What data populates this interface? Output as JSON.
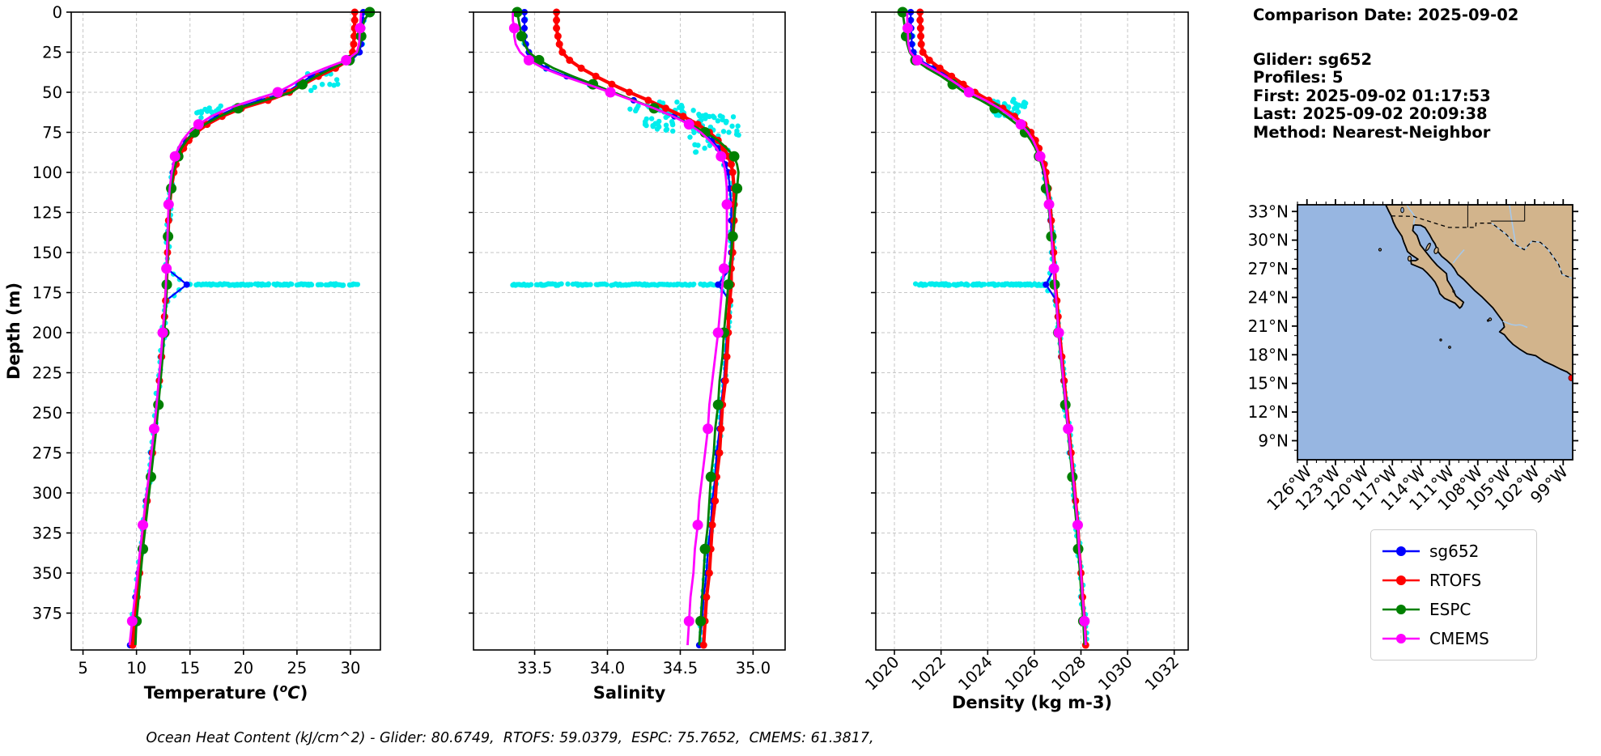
{
  "info_panel": {
    "date": "Comparison Date: 2025-09-02",
    "glider": "Glider: sg652",
    "profiles": "Profiles: 5",
    "first": "First: 2025-09-02 01:17:53",
    "last": "Last: 2025-09-02 20:09:38",
    "method": "Method: Nearest-Neighbor"
  },
  "footer": {
    "ohc_line": "Ocean Heat Content (kJ/cm^2) - Glider: 80.6749,  RTOFS: 59.0379,  ESPC: 75.7652,  CMEMS: 61.3817,"
  },
  "legend": {
    "entries": [
      {
        "label": "sg652",
        "color": "#0000ff"
      },
      {
        "label": "RTOFS",
        "color": "#ff0000"
      },
      {
        "label": "ESPC",
        "color": "#008000"
      },
      {
        "label": "CMEMS",
        "color": "#ff00ff"
      }
    ]
  },
  "map": {
    "lat_labels": [
      "33°N",
      "30°N",
      "27°N",
      "24°N",
      "21°N",
      "18°N",
      "15°N",
      "12°N",
      "9°N"
    ],
    "lat_values": [
      33,
      30,
      27,
      24,
      21,
      18,
      15,
      12,
      9
    ],
    "lon_labels": [
      "126°W",
      "123°W",
      "120°W",
      "117°W",
      "114°W",
      "111°W",
      "108°W",
      "105°W",
      "102°W",
      "99°W"
    ],
    "lon_values": [
      126,
      123,
      120,
      117,
      114,
      111,
      108,
      105,
      102,
      99
    ],
    "ocean_color": "#97b6e1",
    "land_color": "#d2b48c",
    "coast_color": "#000000",
    "river_color": "#a6c8ea",
    "glider_marker_color": "#ff0000"
  },
  "chart_data": [
    {
      "type": "line",
      "id": "temperature",
      "xlabel": "Temperature (^oC)",
      "ylabel": "Depth (m)",
      "xlim": [
        3.9,
        32.8
      ],
      "xticks": [
        5,
        10,
        15,
        20,
        25,
        30
      ],
      "xtick_labels": [
        "5",
        "10",
        "15",
        "20",
        "25",
        "30"
      ],
      "xtick_rotation": 0,
      "ylim": [
        0,
        398
      ],
      "yticks": [
        0,
        25,
        50,
        75,
        100,
        125,
        150,
        175,
        200,
        225,
        250,
        275,
        300,
        325,
        350,
        375
      ],
      "show_yticklabels": true,
      "grid": true,
      "depths": [
        0,
        5,
        10,
        15,
        20,
        25,
        30,
        35,
        40,
        45,
        50,
        55,
        60,
        65,
        70,
        75,
        80,
        85,
        90,
        95,
        100,
        110,
        120,
        130,
        140,
        150,
        160,
        170,
        180,
        190,
        200,
        215,
        230,
        245,
        260,
        275,
        290,
        305,
        320,
        335,
        350,
        365,
        380,
        395
      ],
      "series": [
        {
          "name": "sg652",
          "color": "#0000ff",
          "values": [
            31.2,
            31.15,
            31.1,
            31.05,
            31.0,
            30.85,
            30.1,
            28.2,
            26.3,
            25.2,
            24.0,
            21.5,
            19.2,
            17.5,
            16.2,
            15.3,
            14.6,
            14.1,
            13.8,
            13.6,
            13.4,
            13.2,
            13.1,
            13.0,
            12.95,
            12.9,
            12.85,
            14.7,
            12.75,
            12.65,
            12.5,
            12.3,
            12.1,
            11.9,
            11.7,
            11.4,
            11.2,
            10.9,
            10.7,
            10.4,
            10.2,
            9.9,
            9.7,
            9.4
          ]
        },
        {
          "name": "RTOFS",
          "color": "#ff0000",
          "values": [
            30.4,
            30.4,
            30.38,
            30.35,
            30.3,
            30.2,
            29.8,
            28.6,
            27.0,
            25.6,
            24.3,
            22.3,
            19.8,
            18.0,
            16.6,
            15.6,
            14.9,
            14.4,
            14.0,
            13.7,
            13.5,
            13.25,
            13.1,
            13.0,
            12.95,
            12.9,
            12.85,
            12.8,
            12.72,
            12.62,
            12.5,
            12.35,
            12.15,
            11.95,
            11.75,
            11.5,
            11.25,
            11.0,
            10.75,
            10.5,
            10.3,
            10.05,
            9.85,
            9.65
          ]
        },
        {
          "name": "ESPC",
          "color": "#008000",
          "values": [
            31.8,
            31.3,
            31.1,
            31.0,
            30.9,
            30.7,
            29.9,
            28.3,
            26.8,
            25.5,
            24.5,
            22.0,
            19.5,
            17.8,
            16.4,
            15.4,
            14.7,
            14.2,
            13.9,
            13.65,
            13.45,
            13.25,
            13.1,
            13.0,
            12.95,
            12.9,
            12.87,
            12.83,
            12.78,
            12.7,
            12.6,
            12.45,
            12.25,
            12.05,
            11.85,
            11.6,
            11.35,
            11.1,
            10.85,
            10.6,
            10.4,
            10.2,
            10.0,
            9.9
          ]
        },
        {
          "name": "CMEMS",
          "color": "#ff00ff",
          "values": [
            31.0,
            30.95,
            30.9,
            30.85,
            30.8,
            30.6,
            29.6,
            27.6,
            25.8,
            24.6,
            23.2,
            20.8,
            18.6,
            17.0,
            15.8,
            14.9,
            14.3,
            13.9,
            13.6,
            13.45,
            13.3,
            13.1,
            13.0,
            12.95,
            12.9,
            12.85,
            12.8,
            12.75,
            12.68,
            12.58,
            12.45,
            12.28,
            12.08,
            11.88,
            11.65,
            11.4,
            11.15,
            10.85,
            10.6,
            10.35,
            10.1,
            9.85,
            9.6,
            9.35
          ]
        }
      ],
      "glider_scatter": {
        "color": "#00eded",
        "line_depth": 170,
        "line_range": [
          14.7,
          30.6
        ],
        "clusters": [
          {
            "x0": 15.6,
            "x1": 18.2,
            "d0": 56,
            "d1": 66,
            "n": 18
          },
          {
            "x0": 26.0,
            "x1": 29.3,
            "d0": 38,
            "d1": 50,
            "n": 14
          }
        ]
      }
    },
    {
      "type": "line",
      "id": "salinity",
      "xlabel": "Salinity",
      "ylabel": "",
      "xlim": [
        33.08,
        35.22
      ],
      "xticks": [
        33.5,
        34.0,
        34.5,
        35.0
      ],
      "xtick_labels": [
        "33.5",
        "34.0",
        "34.5",
        "35.0"
      ],
      "xtick_rotation": 0,
      "ylim": [
        0,
        398
      ],
      "yticks": [
        0,
        25,
        50,
        75,
        100,
        125,
        150,
        175,
        200,
        225,
        250,
        275,
        300,
        325,
        350,
        375
      ],
      "show_yticklabels": false,
      "grid": true,
      "depths": [
        0,
        5,
        10,
        15,
        20,
        25,
        30,
        35,
        40,
        45,
        50,
        55,
        60,
        65,
        70,
        75,
        80,
        85,
        90,
        95,
        100,
        110,
        120,
        130,
        140,
        150,
        160,
        170,
        180,
        190,
        200,
        215,
        230,
        245,
        260,
        275,
        290,
        305,
        320,
        335,
        350,
        365,
        380,
        395
      ],
      "series": [
        {
          "name": "sg652",
          "color": "#0000ff",
          "values": [
            33.43,
            33.43,
            33.43,
            33.43,
            33.44,
            33.46,
            33.5,
            33.58,
            33.72,
            33.88,
            34.02,
            34.18,
            34.32,
            34.46,
            34.58,
            34.66,
            34.72,
            34.76,
            34.79,
            34.81,
            34.83,
            34.84,
            34.85,
            34.85,
            34.85,
            34.85,
            34.84,
            34.76,
            34.84,
            34.83,
            34.82,
            34.81,
            34.8,
            34.78,
            34.77,
            34.75,
            34.74,
            34.72,
            34.71,
            34.69,
            34.68,
            34.66,
            34.65,
            34.63
          ]
        },
        {
          "name": "RTOFS",
          "color": "#ff0000",
          "values": [
            33.65,
            33.65,
            33.65,
            33.66,
            33.67,
            33.69,
            33.74,
            33.82,
            33.92,
            34.03,
            34.15,
            34.28,
            34.4,
            34.52,
            34.62,
            34.7,
            34.76,
            34.8,
            34.83,
            34.85,
            34.86,
            34.87,
            34.87,
            34.87,
            34.86,
            34.86,
            34.85,
            34.85,
            34.84,
            34.83,
            34.83,
            34.82,
            34.81,
            34.79,
            34.78,
            34.77,
            34.75,
            34.74,
            34.72,
            34.71,
            34.7,
            34.68,
            34.67,
            34.66
          ]
        },
        {
          "name": "ESPC",
          "color": "#008000",
          "values": [
            33.38,
            33.39,
            33.4,
            33.41,
            33.43,
            33.46,
            33.53,
            33.63,
            33.76,
            33.9,
            34.04,
            34.18,
            34.32,
            34.45,
            34.57,
            34.67,
            34.76,
            34.82,
            34.87,
            34.89,
            34.9,
            34.89,
            34.88,
            34.87,
            34.86,
            34.85,
            34.84,
            34.83,
            34.82,
            34.81,
            34.8,
            34.79,
            34.77,
            34.76,
            34.74,
            34.73,
            34.71,
            34.7,
            34.69,
            34.67,
            34.66,
            34.65,
            34.64,
            34.63
          ]
        },
        {
          "name": "CMEMS",
          "color": "#ff00ff",
          "values": [
            33.35,
            33.35,
            33.36,
            33.36,
            33.37,
            33.4,
            33.46,
            33.56,
            33.7,
            33.86,
            34.02,
            34.17,
            34.32,
            34.45,
            34.56,
            34.64,
            34.7,
            34.75,
            34.78,
            34.8,
            34.81,
            34.82,
            34.82,
            34.82,
            34.82,
            34.81,
            34.8,
            34.79,
            34.78,
            34.77,
            34.76,
            34.74,
            34.72,
            34.7,
            34.69,
            34.67,
            34.65,
            34.63,
            34.62,
            34.6,
            34.59,
            34.57,
            34.56,
            34.55
          ]
        }
      ],
      "glider_scatter": {
        "color": "#00eded",
        "line_depth": 170,
        "line_range": [
          33.35,
          34.78
        ],
        "clusters": [
          {
            "x0": 34.15,
            "x1": 34.6,
            "d0": 56,
            "d1": 63,
            "n": 26
          },
          {
            "x0": 34.25,
            "x1": 34.9,
            "d0": 63,
            "d1": 75,
            "n": 55
          },
          {
            "x0": 34.55,
            "x1": 34.92,
            "d0": 75,
            "d1": 90,
            "n": 24
          }
        ]
      }
    },
    {
      "type": "line",
      "id": "density",
      "xlabel": "Density (kg m-3)",
      "ylabel": "",
      "xlim": [
        1019.2,
        1032.6
      ],
      "xticks": [
        1020,
        1022,
        1024,
        1026,
        1028,
        1030,
        1032
      ],
      "xtick_labels": [
        "1020",
        "1022",
        "1024",
        "1026",
        "1028",
        "1030",
        "1032"
      ],
      "xtick_rotation": 45,
      "ylim": [
        0,
        398
      ],
      "yticks": [
        0,
        25,
        50,
        75,
        100,
        125,
        150,
        175,
        200,
        225,
        250,
        275,
        300,
        325,
        350,
        375
      ],
      "show_yticklabels": false,
      "grid": true,
      "depths": [
        0,
        5,
        10,
        15,
        20,
        25,
        30,
        35,
        40,
        45,
        50,
        55,
        60,
        65,
        70,
        75,
        80,
        85,
        90,
        95,
        100,
        110,
        120,
        130,
        140,
        150,
        160,
        170,
        180,
        190,
        200,
        215,
        230,
        245,
        260,
        275,
        290,
        305,
        320,
        335,
        350,
        365,
        380,
        395
      ],
      "series": [
        {
          "name": "sg652",
          "color": "#0000ff",
          "values": [
            1020.7,
            1020.7,
            1020.72,
            1020.73,
            1020.75,
            1020.82,
            1021.1,
            1021.7,
            1022.3,
            1022.8,
            1023.3,
            1024.0,
            1024.6,
            1025.1,
            1025.5,
            1025.8,
            1026.0,
            1026.15,
            1026.3,
            1026.4,
            1026.45,
            1026.55,
            1026.65,
            1026.7,
            1026.75,
            1026.8,
            1026.85,
            1026.5,
            1026.95,
            1027.0,
            1027.05,
            1027.15,
            1027.25,
            1027.35,
            1027.45,
            1027.55,
            1027.65,
            1027.75,
            1027.85,
            1027.9,
            1028.0,
            1028.05,
            1028.15,
            1028.2
          ]
        },
        {
          "name": "RTOFS",
          "color": "#ff0000",
          "values": [
            1021.1,
            1021.1,
            1021.12,
            1021.13,
            1021.15,
            1021.22,
            1021.5,
            1021.95,
            1022.45,
            1022.95,
            1023.45,
            1024.05,
            1024.65,
            1025.15,
            1025.55,
            1025.85,
            1026.05,
            1026.2,
            1026.32,
            1026.42,
            1026.5,
            1026.6,
            1026.68,
            1026.73,
            1026.78,
            1026.83,
            1026.87,
            1026.9,
            1026.97,
            1027.02,
            1027.08,
            1027.18,
            1027.28,
            1027.38,
            1027.48,
            1027.58,
            1027.68,
            1027.77,
            1027.86,
            1027.92,
            1028.0,
            1028.07,
            1028.15,
            1028.2
          ]
        },
        {
          "name": "ESPC",
          "color": "#008000",
          "values": [
            1020.35,
            1020.4,
            1020.45,
            1020.5,
            1020.55,
            1020.65,
            1020.9,
            1021.4,
            1022.0,
            1022.5,
            1023.0,
            1023.7,
            1024.3,
            1024.8,
            1025.25,
            1025.6,
            1025.85,
            1026.05,
            1026.2,
            1026.3,
            1026.4,
            1026.5,
            1026.6,
            1026.67,
            1026.73,
            1026.78,
            1026.83,
            1026.87,
            1026.93,
            1026.98,
            1027.03,
            1027.13,
            1027.23,
            1027.33,
            1027.43,
            1027.53,
            1027.63,
            1027.72,
            1027.81,
            1027.88,
            1027.96,
            1028.02,
            1028.1,
            1028.15
          ]
        },
        {
          "name": "CMEMS",
          "color": "#ff00ff",
          "values": [
            1020.55,
            1020.55,
            1020.57,
            1020.58,
            1020.6,
            1020.68,
            1020.98,
            1021.58,
            1022.18,
            1022.7,
            1023.2,
            1023.9,
            1024.5,
            1025.0,
            1025.42,
            1025.73,
            1025.95,
            1026.1,
            1026.25,
            1026.36,
            1026.44,
            1026.54,
            1026.63,
            1026.69,
            1026.74,
            1026.79,
            1026.84,
            1026.88,
            1026.94,
            1026.99,
            1027.05,
            1027.15,
            1027.25,
            1027.35,
            1027.45,
            1027.56,
            1027.66,
            1027.76,
            1027.86,
            1027.92,
            1028.0,
            1028.07,
            1028.15,
            1028.2
          ]
        }
      ],
      "glider_scatter": {
        "color": "#00eded",
        "line_depth": 170,
        "line_range": [
          1020.9,
          1026.45
        ],
        "clusters": [
          {
            "x0": 1024.2,
            "x1": 1025.75,
            "d0": 54,
            "d1": 65,
            "n": 36
          }
        ]
      }
    }
  ]
}
